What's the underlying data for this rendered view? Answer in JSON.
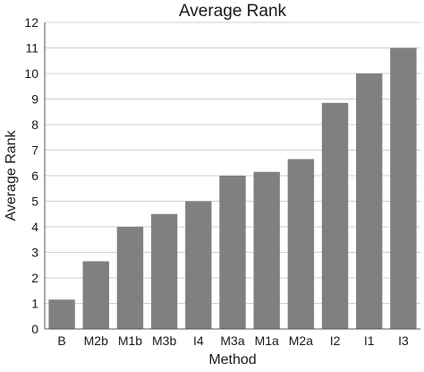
{
  "chart_data": {
    "type": "bar",
    "title": "Average Rank",
    "xlabel": "Method",
    "ylabel": "Average Rank",
    "categories": [
      "B",
      "M2b",
      "M1b",
      "M3b",
      "I4",
      "M3a",
      "M1a",
      "M2a",
      "I2",
      "I1",
      "I3"
    ],
    "values": [
      1.15,
      2.65,
      4.0,
      4.5,
      5.0,
      6.0,
      6.15,
      6.65,
      8.85,
      10.0,
      11.0
    ],
    "ylim": [
      0,
      12
    ],
    "yticks": [
      0,
      1,
      2,
      3,
      4,
      5,
      6,
      7,
      8,
      9,
      10,
      11,
      12
    ],
    "grid": true,
    "legend": "none",
    "colors": {
      "bar": "#808080",
      "grid": "#d0d0d0",
      "axis": "#555555",
      "text": "#1a1a1a"
    }
  }
}
